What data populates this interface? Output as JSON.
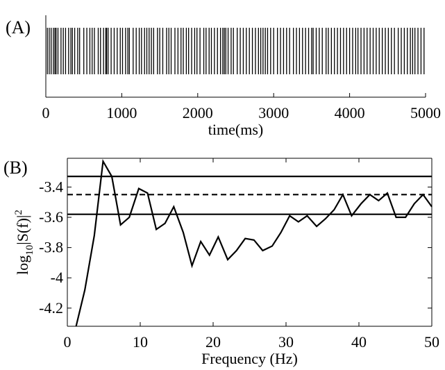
{
  "chart_data": [
    {
      "type": "raster",
      "panel_label": "(A)",
      "xlabel": "time(ms)",
      "xlim": [
        0,
        5000
      ],
      "xticks": [
        0,
        1000,
        2000,
        3000,
        4000,
        5000
      ],
      "color": "#000000",
      "values": [
        20,
        45,
        70,
        100,
        120,
        135,
        160,
        200,
        230,
        260,
        300,
        330,
        350,
        380,
        420,
        445,
        500,
        540,
        580,
        610,
        640,
        690,
        720,
        760,
        790,
        800,
        820,
        860,
        900,
        940,
        980,
        1010,
        1050,
        1080,
        1100,
        1150,
        1190,
        1230,
        1260,
        1300,
        1330,
        1360,
        1390,
        1420,
        1470,
        1500,
        1540,
        1590,
        1620,
        1650,
        1700,
        1740,
        1780,
        1810,
        1850,
        1880,
        1920,
        1960,
        1990,
        2030,
        2080,
        2110,
        2150,
        2180,
        2220,
        2260,
        2300,
        2330,
        2350,
        2370,
        2400,
        2440,
        2470,
        2520,
        2560,
        2600,
        2640,
        2680,
        2720,
        2760,
        2800,
        2830,
        2860,
        2890,
        2920,
        2960,
        3000,
        3050,
        3090,
        3130,
        3170,
        3210,
        3260,
        3300,
        3340,
        3380,
        3420,
        3460,
        3500,
        3520,
        3560,
        3600,
        3640,
        3690,
        3720,
        3760,
        3800,
        3840,
        3880,
        3920,
        3960,
        4000,
        4040,
        4080,
        4110,
        4150,
        4190,
        4230,
        4270,
        4310,
        4350,
        4390,
        4430,
        4470,
        4510,
        4550,
        4590,
        4640,
        4680,
        4720,
        4760,
        4800,
        4830,
        4860,
        4900,
        4940,
        4980
      ]
    },
    {
      "type": "line",
      "panel_label": "(B)",
      "xlabel": "Frequency (Hz)",
      "ylabel": {
        "base": "log",
        "sub": "10",
        "body": "|S(f)|",
        "sup": "2"
      },
      "xlim": [
        0,
        50
      ],
      "xticks": [
        0,
        10,
        20,
        30,
        40,
        50
      ],
      "ylim": [
        -4.32,
        -3.21
      ],
      "yticks": [
        -4.2,
        -4,
        -3.8,
        -3.6,
        -3.4
      ],
      "color": "#000000",
      "x": [
        1.2,
        2.4,
        3.7,
        4.9,
        6.1,
        7.3,
        8.5,
        9.8,
        11.0,
        12.2,
        13.4,
        14.6,
        15.9,
        17.1,
        18.3,
        19.5,
        20.7,
        22.0,
        23.2,
        24.4,
        25.6,
        26.8,
        28.1,
        29.3,
        30.5,
        31.7,
        32.9,
        34.2,
        35.4,
        36.6,
        37.8,
        39.0,
        40.3,
        41.5,
        42.7,
        43.9,
        45.1,
        46.4,
        47.6,
        48.8,
        50
      ],
      "values": [
        -4.32,
        -4.08,
        -3.72,
        -3.23,
        -3.33,
        -3.65,
        -3.6,
        -3.41,
        -3.44,
        -3.68,
        -3.64,
        -3.53,
        -3.7,
        -3.92,
        -3.76,
        -3.85,
        -3.73,
        -3.88,
        -3.82,
        -3.74,
        -3.75,
        -3.82,
        -3.79,
        -3.7,
        -3.59,
        -3.63,
        -3.59,
        -3.66,
        -3.61,
        -3.55,
        -3.45,
        -3.59,
        -3.51,
        -3.45,
        -3.49,
        -3.44,
        -3.6,
        -3.6,
        -3.51,
        -3.45,
        -3.53
      ],
      "hlines": [
        {
          "value": -3.33,
          "style": "solid"
        },
        {
          "value": -3.45,
          "style": "dashed"
        },
        {
          "value": -3.58,
          "style": "solid"
        }
      ]
    }
  ]
}
